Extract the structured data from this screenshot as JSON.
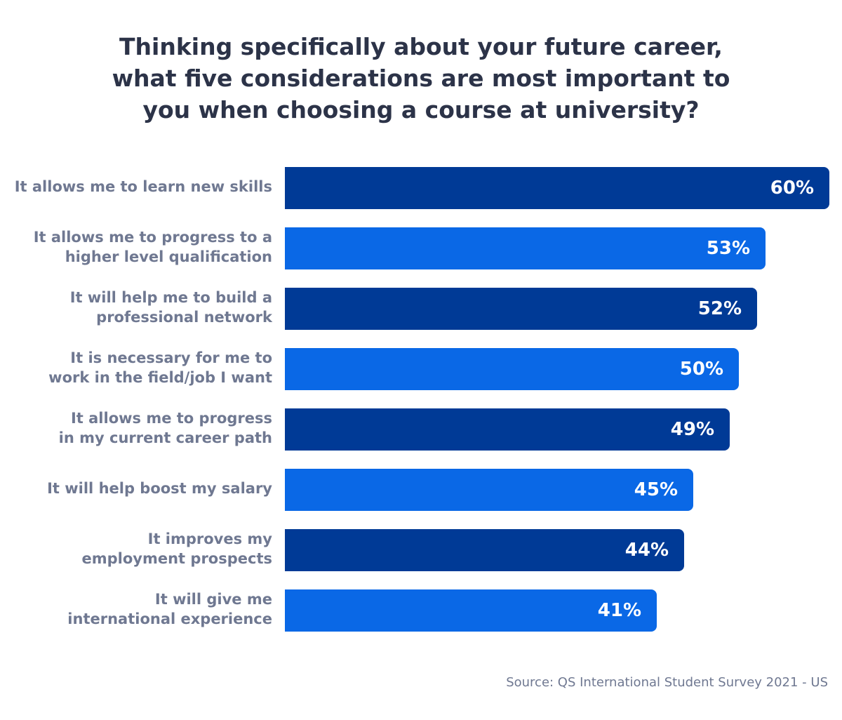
{
  "chart_data": {
    "type": "bar",
    "orientation": "horizontal",
    "title_lines": [
      "Thinking specifically about your future career,",
      "what five considerations are most important to",
      "you when choosing a course at university?"
    ],
    "categories": [
      [
        "It allows me to learn new skills"
      ],
      [
        "It allows me to progress to a",
        "higher level qualification"
      ],
      [
        "It will help me to build a",
        "professional network"
      ],
      [
        "It is necessary for me to",
        "work in the field/job I want"
      ],
      [
        "It allows me to progress",
        "in my current career path"
      ],
      [
        "It will help boost my salary"
      ],
      [
        "It improves my",
        "employment prospects"
      ],
      [
        "It will give me",
        "international experience"
      ]
    ],
    "values": [
      60,
      53,
      52,
      50,
      49,
      45,
      44,
      41
    ],
    "value_labels": [
      "60%",
      "53%",
      "52%",
      "50%",
      "49%",
      "45%",
      "44%",
      "41%"
    ],
    "unit": "%",
    "xlim": [
      0,
      60
    ],
    "colors": [
      "#003a96",
      "#0a68e6"
    ],
    "source": "Source: QS International Student Survey 2021 - US"
  }
}
